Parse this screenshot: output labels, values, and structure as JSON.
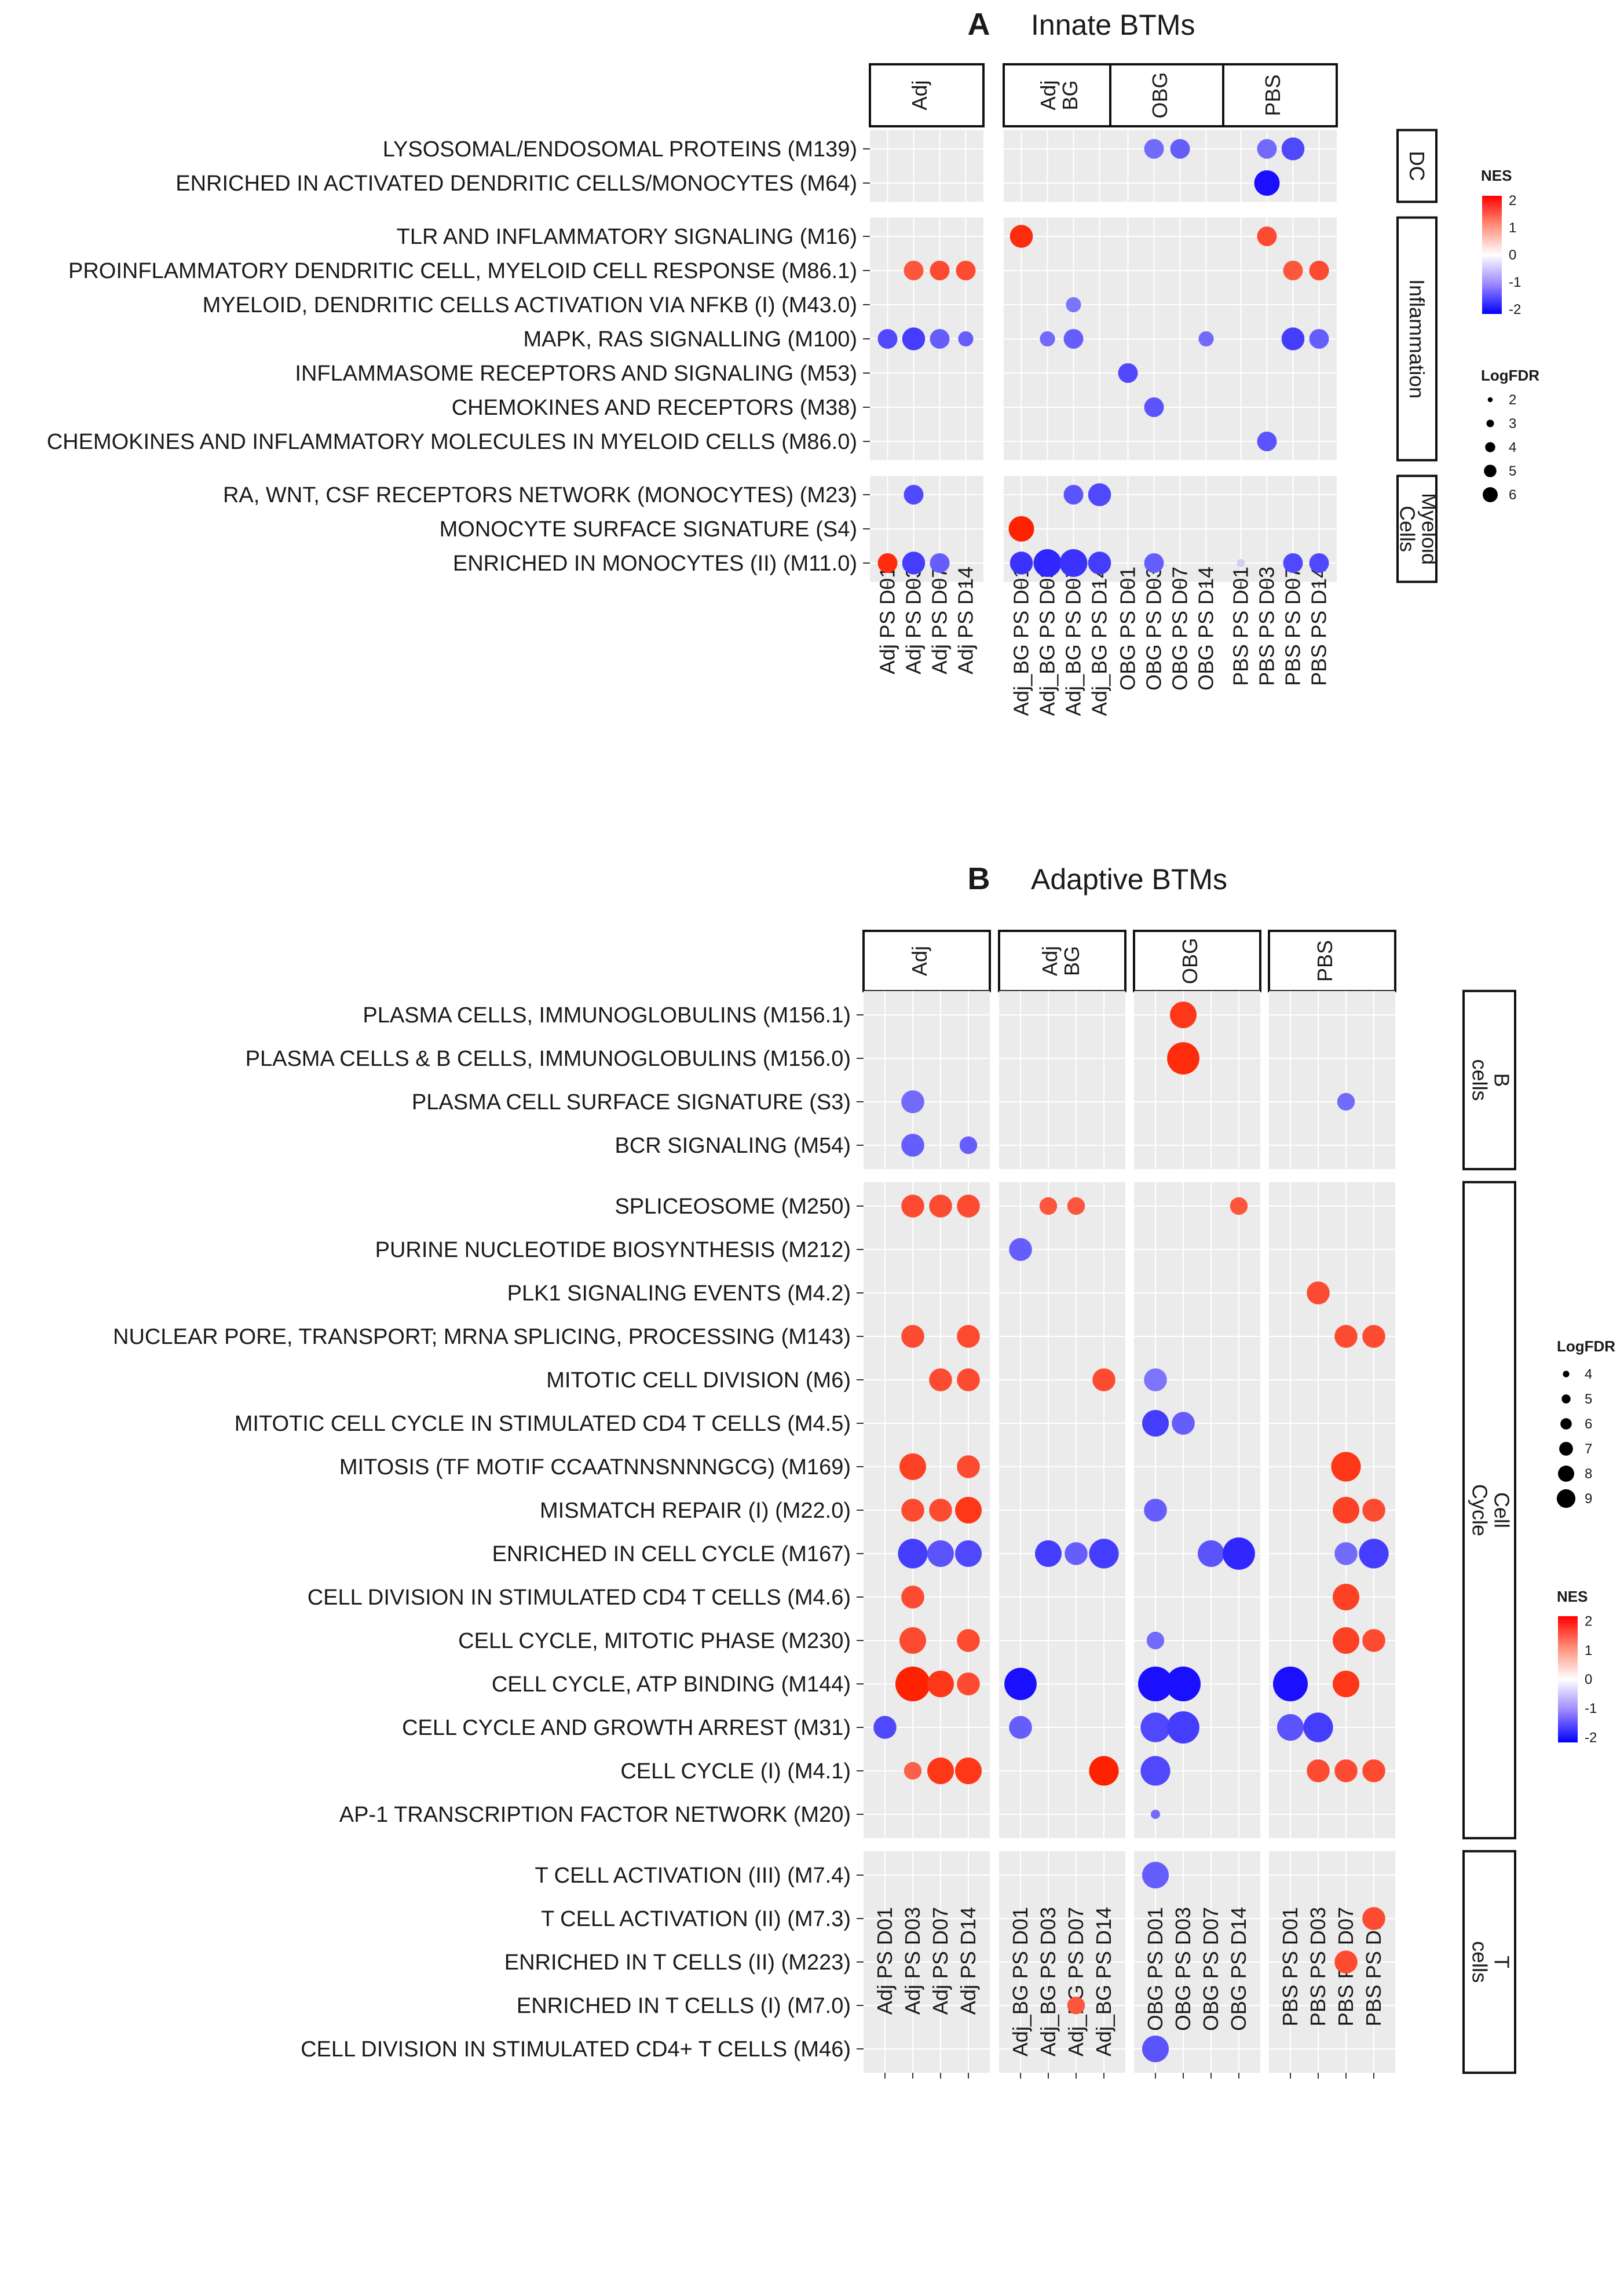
{
  "chart_data": [
    {
      "type": "scatter",
      "panel": "A",
      "title": "Innate BTMs",
      "groups": [
        {
          "label": "Adj",
          "columns": [
            "Adj PS D01",
            "Adj PS D03",
            "Adj PS D07",
            "Adj PS D14"
          ]
        },
        {
          "label": "Adj BG",
          "columns": [
            "Adj_BG PS D01",
            "Adj_BG PS D03",
            "Adj_BG PS D07",
            "Adj_BG PS D14"
          ]
        },
        {
          "label": "OBG",
          "columns": [
            "OBG PS D01",
            "OBG PS D03",
            "OBG PS D07",
            "OBG PS D14"
          ]
        },
        {
          "label": "PBS",
          "columns": [
            "PBS PS D01",
            "PBS PS D03",
            "PBS PS D07",
            "PBS PS D14"
          ]
        }
      ],
      "facets": [
        {
          "label": "DC",
          "rows": [
            "LYSOSOMAL/ENDOSOMAL PROTEINS (M139)",
            "ENRICHED IN ACTIVATED DENDRITIC CELLS/MONOCYTES (M64)"
          ]
        },
        {
          "label": "Inflammation",
          "rows": [
            "TLR AND INFLAMMATORY SIGNALING (M16)",
            "PROINFLAMMATORY DENDRITIC CELL, MYELOID CELL RESPONSE (M86.1)",
            "MYELOID, DENDRITIC CELLS ACTIVATION VIA NFKB (I) (M43.0)",
            "MAPK, RAS SIGNALLING (M100)",
            "INFLAMMASOME RECEPTORS AND SIGNALING (M53)",
            "CHEMOKINES AND RECEPTORS (M38)",
            "CHEMOKINES AND INFLAMMATORY MOLECULES IN MYELOID CELLS (M86.0)"
          ]
        },
        {
          "label": "Myeloid Cells",
          "rows": [
            "RA, WNT, CSF RECEPTORS NETWORK (MONOCYTES) (M23)",
            "MONOCYTE SURFACE SIGNATURE (S4)",
            "ENRICHED IN MONOCYTES (II) (M11.0)"
          ]
        }
      ],
      "points": [
        [
          0,
          0,
          9,
          -1.2,
          3
        ],
        [
          0,
          0,
          10,
          -1.3,
          3
        ],
        [
          0,
          0,
          13,
          -1.2,
          3
        ],
        [
          0,
          0,
          14,
          -1.5,
          4
        ],
        [
          0,
          1,
          13,
          -2.2,
          5
        ],
        [
          1,
          0,
          4,
          1.9,
          4
        ],
        [
          1,
          0,
          13,
          1.6,
          3
        ],
        [
          1,
          1,
          1,
          1.5,
          3
        ],
        [
          1,
          1,
          2,
          1.6,
          3
        ],
        [
          1,
          1,
          3,
          1.6,
          3
        ],
        [
          1,
          1,
          14,
          1.5,
          3
        ],
        [
          1,
          1,
          15,
          1.6,
          3
        ],
        [
          1,
          2,
          6,
          -1.1,
          2
        ],
        [
          1,
          3,
          0,
          -1.5,
          3
        ],
        [
          1,
          3,
          1,
          -1.6,
          4
        ],
        [
          1,
          3,
          2,
          -1.3,
          3
        ],
        [
          1,
          3,
          3,
          -1.3,
          2
        ],
        [
          1,
          3,
          5,
          -1.2,
          2
        ],
        [
          1,
          3,
          6,
          -1.3,
          3
        ],
        [
          1,
          3,
          11,
          -1.2,
          2
        ],
        [
          1,
          3,
          14,
          -1.6,
          4
        ],
        [
          1,
          3,
          15,
          -1.3,
          3
        ],
        [
          1,
          4,
          8,
          -1.5,
          3
        ],
        [
          1,
          5,
          9,
          -1.4,
          3
        ],
        [
          1,
          6,
          13,
          -1.4,
          3
        ],
        [
          2,
          0,
          1,
          -1.5,
          3
        ],
        [
          2,
          0,
          6,
          -1.4,
          3
        ],
        [
          2,
          0,
          7,
          -1.5,
          4
        ],
        [
          2,
          1,
          4,
          2.0,
          5
        ],
        [
          2,
          2,
          0,
          1.9,
          3
        ],
        [
          2,
          2,
          1,
          -1.6,
          4
        ],
        [
          2,
          2,
          2,
          -1.3,
          3
        ],
        [
          2,
          2,
          4,
          -1.7,
          4
        ],
        [
          2,
          2,
          5,
          -1.8,
          6
        ],
        [
          2,
          2,
          6,
          -1.7,
          6
        ],
        [
          2,
          2,
          7,
          -1.6,
          4
        ],
        [
          2,
          2,
          9,
          -1.3,
          3
        ],
        [
          2,
          2,
          12,
          -0.3,
          1
        ],
        [
          2,
          2,
          14,
          -1.5,
          3
        ],
        [
          2,
          2,
          15,
          -1.5,
          3
        ]
      ],
      "nes_legend": {
        "title": "NES",
        "ticks": [
          2,
          1,
          0,
          -1,
          -2
        ]
      },
      "size_legend": {
        "title": "LogFDR",
        "ticks": [
          2,
          3,
          4,
          5,
          6
        ]
      }
    },
    {
      "type": "scatter",
      "panel": "B",
      "title": "Adaptive BTMs",
      "groups": [
        {
          "label": "Adj",
          "columns": [
            "Adj PS D01",
            "Adj PS D03",
            "Adj PS D07",
            "Adj PS D14"
          ]
        },
        {
          "label": "Adj BG",
          "columns": [
            "Adj_BG PS D01",
            "Adj_BG PS D03",
            "Adj_BG PS D07",
            "Adj_BG PS D14"
          ]
        },
        {
          "label": "OBG",
          "columns": [
            "OBG PS D01",
            "OBG PS D03",
            "OBG PS D07",
            "OBG PS D14"
          ]
        },
        {
          "label": "PBS",
          "columns": [
            "PBS PS D01",
            "PBS PS D03",
            "PBS PS D07",
            "PBS PS D14"
          ]
        }
      ],
      "facets": [
        {
          "label": "B cells",
          "rows": [
            "PLASMA CELLS, IMMUNOGLOBULINS (M156.1)",
            "PLASMA CELLS & B CELLS, IMMUNOGLOBULINS (M156.0)",
            "PLASMA CELL SURFACE SIGNATURE (S3)",
            "BCR SIGNALING (M54)"
          ]
        },
        {
          "label": "Cell Cycle",
          "rows": [
            "SPLICEOSOME (M250)",
            "PURINE NUCLEOTIDE BIOSYNTHESIS (M212)",
            "PLK1 SIGNALING EVENTS (M4.2)",
            "NUCLEAR PORE, TRANSPORT; MRNA SPLICING, PROCESSING (M143)",
            "MITOTIC CELL DIVISION (M6)",
            "MITOTIC CELL CYCLE IN STIMULATED CD4 T CELLS (M4.5)",
            "MITOSIS (TF MOTIF CCAATNNSNNNGCG) (M169)",
            "MISMATCH REPAIR (I) (M22.0)",
            "ENRICHED IN CELL CYCLE (M167)",
            "CELL DIVISION IN STIMULATED CD4 T CELLS (M4.6)",
            "CELL CYCLE, MITOTIC PHASE (M230)",
            "CELL CYCLE, ATP BINDING (M144)",
            "CELL CYCLE AND GROWTH ARREST (M31)",
            "CELL CYCLE (I) (M4.1)",
            "AP-1 TRANSCRIPTION FACTOR NETWORK (M20)"
          ]
        },
        {
          "label": "T cells",
          "rows": [
            "T CELL ACTIVATION (III) (M7.4)",
            "T CELL ACTIVATION (II) (M7.3)",
            "ENRICHED IN T CELLS (II) (M223)",
            "ENRICHED IN T CELLS (I) (M7.0)",
            "CELL DIVISION IN STIMULATED CD4+ T CELLS (M46)"
          ]
        }
      ],
      "points": [
        [
          0,
          0,
          9,
          1.8,
          6
        ],
        [
          0,
          1,
          9,
          1.9,
          8
        ],
        [
          0,
          2,
          1,
          -1.2,
          5
        ],
        [
          0,
          2,
          14,
          -1.2,
          4
        ],
        [
          0,
          3,
          1,
          -1.3,
          5
        ],
        [
          0,
          3,
          3,
          -1.3,
          4
        ],
        [
          1,
          0,
          1,
          1.6,
          5
        ],
        [
          1,
          0,
          2,
          1.6,
          5
        ],
        [
          1,
          0,
          3,
          1.6,
          5
        ],
        [
          1,
          0,
          5,
          1.5,
          4
        ],
        [
          1,
          0,
          6,
          1.5,
          4
        ],
        [
          1,
          0,
          11,
          1.5,
          4
        ],
        [
          1,
          1,
          4,
          -1.3,
          5
        ],
        [
          1,
          2,
          13,
          1.6,
          5
        ],
        [
          1,
          3,
          1,
          1.6,
          5
        ],
        [
          1,
          3,
          3,
          1.6,
          5
        ],
        [
          1,
          3,
          14,
          1.6,
          5
        ],
        [
          1,
          3,
          15,
          1.6,
          5
        ],
        [
          1,
          4,
          2,
          1.6,
          5
        ],
        [
          1,
          4,
          3,
          1.6,
          5
        ],
        [
          1,
          4,
          7,
          1.6,
          5
        ],
        [
          1,
          4,
          8,
          -1.1,
          5
        ],
        [
          1,
          5,
          8,
          -1.6,
          6
        ],
        [
          1,
          5,
          9,
          -1.3,
          5
        ],
        [
          1,
          6,
          1,
          1.7,
          6
        ],
        [
          1,
          6,
          3,
          1.6,
          5
        ],
        [
          1,
          6,
          14,
          1.8,
          7
        ],
        [
          1,
          7,
          1,
          1.6,
          5
        ],
        [
          1,
          7,
          2,
          1.6,
          5
        ],
        [
          1,
          7,
          3,
          1.8,
          6
        ],
        [
          1,
          7,
          8,
          -1.3,
          5
        ],
        [
          1,
          7,
          14,
          1.7,
          6
        ],
        [
          1,
          7,
          15,
          1.6,
          5
        ],
        [
          1,
          8,
          1,
          -1.6,
          7
        ],
        [
          1,
          8,
          2,
          -1.4,
          6
        ],
        [
          1,
          8,
          3,
          -1.5,
          6
        ],
        [
          1,
          8,
          5,
          -1.6,
          6
        ],
        [
          1,
          8,
          6,
          -1.3,
          5
        ],
        [
          1,
          8,
          7,
          -1.6,
          7
        ],
        [
          1,
          8,
          10,
          -1.4,
          6
        ],
        [
          1,
          8,
          11,
          -1.8,
          8
        ],
        [
          1,
          8,
          14,
          -1.2,
          5
        ],
        [
          1,
          8,
          15,
          -1.6,
          7
        ],
        [
          1,
          9,
          1,
          1.6,
          5
        ],
        [
          1,
          9,
          14,
          1.7,
          6
        ],
        [
          1,
          10,
          1,
          1.6,
          6
        ],
        [
          1,
          10,
          3,
          1.6,
          5
        ],
        [
          1,
          10,
          8,
          -1.2,
          4
        ],
        [
          1,
          10,
          14,
          1.7,
          6
        ],
        [
          1,
          10,
          15,
          1.6,
          5
        ],
        [
          1,
          11,
          1,
          2.3,
          9
        ],
        [
          1,
          11,
          2,
          1.8,
          6
        ],
        [
          1,
          11,
          3,
          1.6,
          5
        ],
        [
          1,
          11,
          4,
          -2.1,
          8
        ],
        [
          1,
          11,
          8,
          -2.2,
          9
        ],
        [
          1,
          11,
          9,
          -2.4,
          9
        ],
        [
          1,
          11,
          12,
          -2.1,
          9
        ],
        [
          1,
          11,
          14,
          1.8,
          6
        ],
        [
          1,
          12,
          0,
          -1.5,
          5
        ],
        [
          1,
          12,
          4,
          -1.3,
          5
        ],
        [
          1,
          12,
          8,
          -1.5,
          7
        ],
        [
          1,
          12,
          9,
          -1.6,
          8
        ],
        [
          1,
          12,
          12,
          -1.4,
          6
        ],
        [
          1,
          12,
          13,
          -1.6,
          7
        ],
        [
          1,
          13,
          1,
          1.4,
          4
        ],
        [
          1,
          13,
          2,
          1.8,
          6
        ],
        [
          1,
          13,
          3,
          1.8,
          6
        ],
        [
          1,
          13,
          7,
          2.0,
          7
        ],
        [
          1,
          13,
          8,
          -1.5,
          7
        ],
        [
          1,
          13,
          13,
          1.6,
          5
        ],
        [
          1,
          13,
          14,
          1.6,
          5
        ],
        [
          1,
          13,
          15,
          1.6,
          5
        ],
        [
          1,
          14,
          8,
          -1.2,
          3
        ],
        [
          2,
          0,
          8,
          -1.3,
          6
        ],
        [
          2,
          1,
          15,
          1.6,
          5
        ],
        [
          2,
          2,
          14,
          1.6,
          5
        ],
        [
          2,
          3,
          6,
          1.5,
          4
        ],
        [
          2,
          4,
          8,
          -1.4,
          6
        ]
      ],
      "nes_legend": {
        "title": "NES",
        "ticks": [
          2,
          1,
          0,
          -1,
          -2
        ]
      },
      "size_legend": {
        "title": "LogFDR",
        "ticks": [
          4,
          5,
          6,
          7,
          8,
          9
        ]
      }
    }
  ]
}
